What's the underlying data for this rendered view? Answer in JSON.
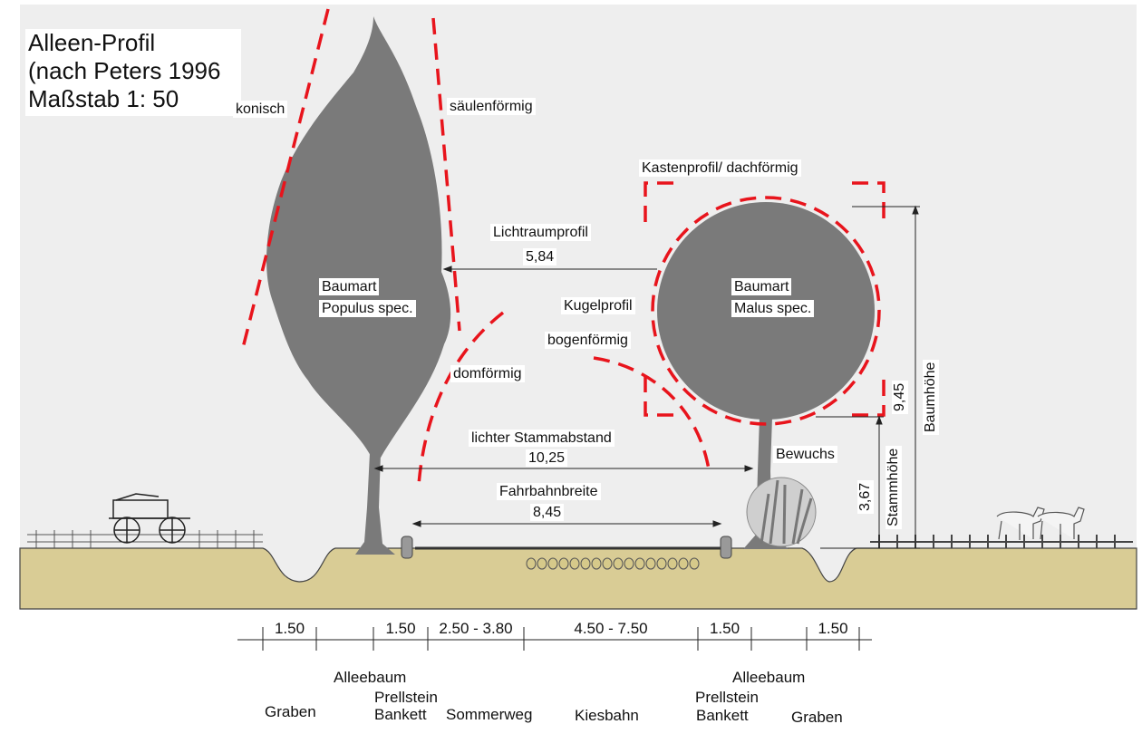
{
  "title": {
    "line1": "Alleen-Profil",
    "line2": "(nach Peters 1996",
    "line3": "Maßstab 1: 50"
  },
  "profiles": {
    "conic": "konisch",
    "columnar": "säulenförmig",
    "box": "Kastenprofil/ dachförmig",
    "sphere": "Kugelprofil",
    "arched": "bogenförmig",
    "dome": "domförmig"
  },
  "tree_left": {
    "line1": "Baumart",
    "line2": "Populus spec."
  },
  "tree_right": {
    "line1": "Baumart",
    "line2": "Malus spec."
  },
  "dimensions": {
    "clearance_label": "Lichtraumprofil",
    "clearance_value": "5,84",
    "trunk_spacing_label": "lichter Stammabstand",
    "trunk_spacing_value": "10,25",
    "road_width_label": "Fahrbahnbreite",
    "road_width_value": "8,45",
    "tree_height_label": "Baumhöhe",
    "tree_height_value": "9,45",
    "trunk_height_label": "Stammhöhe",
    "trunk_height_value": "3,67",
    "growth_label": "Bewuchs"
  },
  "scale": [
    "1.50",
    "1.50",
    "2.50 - 3.80",
    "4.50 - 7.50",
    "1.50",
    "1.50"
  ],
  "zones": {
    "ditch_left": "Graben",
    "avenue_tree_left": "Alleebaum",
    "bollard_left": "Prellstein",
    "shoulder_left": "Bankett",
    "summer_path": "Sommerweg",
    "gravel_track": "Kiesbahn",
    "avenue_tree_right": "Alleebaum",
    "bollard_right": "Prellstein",
    "shoulder_right": "Bankett",
    "ditch_right": "Graben"
  },
  "colors": {
    "panel": "#eeeeee",
    "soil": "#d9cc95",
    "tree": "#7a7a7a",
    "profile_line": "#e8141c",
    "ink": "#111111"
  }
}
